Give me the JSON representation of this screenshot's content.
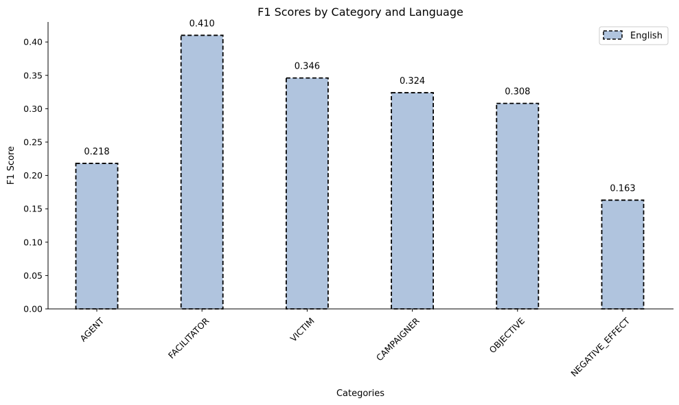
{
  "chart_data": {
    "type": "bar",
    "title": "F1 Scores by Category and Language",
    "xlabel": "Categories",
    "ylabel": "F1 Score",
    "categories": [
      "AGENT",
      "FACILITATOR",
      "VICTIM",
      "CAMPAIGNER",
      "OBJECTIVE",
      "NEGATIVE_EFFECT"
    ],
    "series": [
      {
        "name": "English",
        "values": [
          0.218,
          0.41,
          0.346,
          0.324,
          0.308,
          0.163
        ],
        "labels": [
          "0.218",
          "0.410",
          "0.346",
          "0.324",
          "0.308",
          "0.163"
        ],
        "color": "#b0c4de",
        "edgecolor": "#000000"
      }
    ],
    "ylim": [
      0,
      0.43
    ],
    "yticks": [
      "0.00",
      "0.05",
      "0.10",
      "0.15",
      "0.20",
      "0.25",
      "0.30",
      "0.35",
      "0.40"
    ],
    "grid": false,
    "legend_position": "top-right"
  }
}
